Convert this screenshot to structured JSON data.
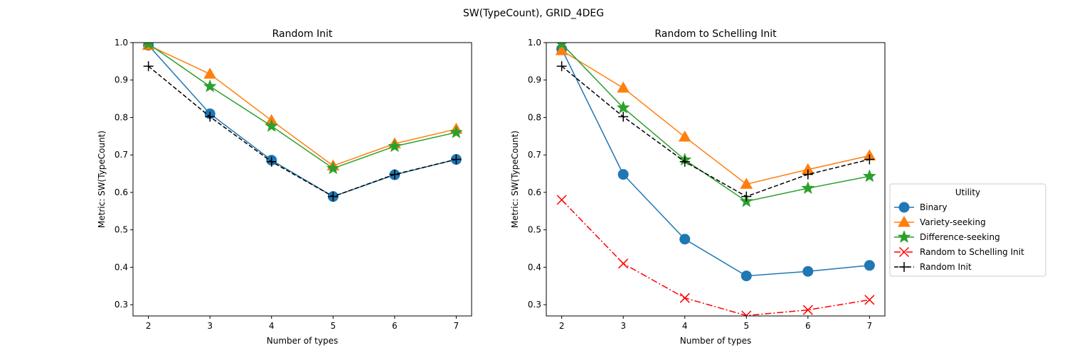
{
  "figure": {
    "suptitle": "SW(TypeCount), GRID_4DEG"
  },
  "legend": {
    "title": "Utility",
    "placement": "right (outside, center-left of figure edge)"
  },
  "colors": {
    "Binary": "#1f77b4",
    "Variety-seeking": "#ff7f0e",
    "Difference-seeking": "#2ca02c",
    "Random to Schelling Init": "#ff0000",
    "Random Init": "#000000"
  },
  "chart_data": [
    {
      "type": "line",
      "title": "Random Init",
      "xlabel": "Number of types",
      "ylabel": "Metric: SW(TypeCount)",
      "x": [
        2,
        3,
        4,
        5,
        6,
        7
      ],
      "xticks": [
        "2",
        "3",
        "4",
        "5",
        "6",
        "7"
      ],
      "yticks": [
        "0.3",
        "0.4",
        "0.5",
        "0.6",
        "0.7",
        "0.8",
        "0.9",
        "1.0"
      ],
      "xlim": [
        1.75,
        7.25
      ],
      "ylim": [
        0.27,
        1.0
      ],
      "grid": false,
      "series": [
        {
          "name": "Binary",
          "values": [
            0.993,
            0.81,
            0.686,
            0.589,
            0.647,
            0.688
          ],
          "marker": "circle",
          "dash": "solid"
        },
        {
          "name": "Variety-seeking",
          "values": [
            0.993,
            0.916,
            0.792,
            0.671,
            0.73,
            0.769
          ],
          "marker": "triangle",
          "dash": "solid"
        },
        {
          "name": "Difference-seeking",
          "values": [
            0.997,
            0.883,
            0.777,
            0.664,
            0.723,
            0.76
          ],
          "marker": "star",
          "dash": "solid"
        },
        {
          "name": "Random Init",
          "values": [
            0.937,
            0.802,
            0.682,
            0.589,
            0.648,
            0.688
          ],
          "marker": "plus",
          "dash": "dashed"
        }
      ]
    },
    {
      "type": "line",
      "title": "Random to Schelling Init",
      "xlabel": "Number of types",
      "ylabel": "Metric: SW(TypeCount)",
      "x": [
        2,
        3,
        4,
        5,
        6,
        7
      ],
      "xticks": [
        "2",
        "3",
        "4",
        "5",
        "6",
        "7"
      ],
      "yticks": [
        "0.3",
        "0.4",
        "0.5",
        "0.6",
        "0.7",
        "0.8",
        "0.9",
        "1.0"
      ],
      "xlim": [
        1.75,
        7.25
      ],
      "ylim": [
        0.27,
        1.0
      ],
      "grid": false,
      "series": [
        {
          "name": "Binary",
          "values": [
            0.983,
            0.648,
            0.475,
            0.377,
            0.389,
            0.405
          ],
          "marker": "circle",
          "dash": "solid"
        },
        {
          "name": "Variety-seeking",
          "values": [
            0.979,
            0.879,
            0.748,
            0.622,
            0.661,
            0.698
          ],
          "marker": "triangle",
          "dash": "solid"
        },
        {
          "name": "Difference-seeking",
          "values": [
            0.997,
            0.826,
            0.687,
            0.576,
            0.611,
            0.643
          ],
          "marker": "star",
          "dash": "solid"
        },
        {
          "name": "Random to Schelling Init",
          "values": [
            0.58,
            0.41,
            0.318,
            0.271,
            0.286,
            0.313
          ],
          "marker": "x",
          "dash": "dashdot"
        },
        {
          "name": "Random Init",
          "values": [
            0.937,
            0.802,
            0.682,
            0.589,
            0.648,
            0.688
          ],
          "marker": "plus",
          "dash": "dashed"
        }
      ]
    }
  ],
  "legend_items": [
    "Binary",
    "Variety-seeking",
    "Difference-seeking",
    "Random to Schelling Init",
    "Random Init"
  ]
}
